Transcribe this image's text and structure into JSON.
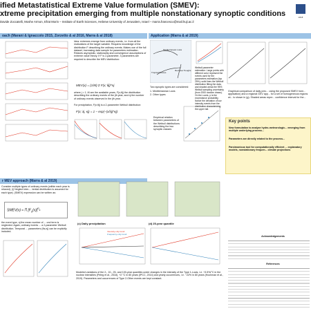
{
  "header": {
    "title_line1": "ified Metastatistical Extreme Value formulation (SMEV):",
    "title_line2": "xtreme precipitation emerging from multiple nonstationary synoptic conditions",
    "authors": "Davide Zoccatelli, Moshe Armon, Efrat Morin – Institute of Earth Sciences, Hebrew University of Jerusalem, Israel – marra.francesco@mail.huji.ac.il"
  },
  "approach": {
    "heading": "oach (Marani & Ignaccolo 2015, Zorzetto & al 2016, Marra & al 2018)",
    "idea": "Idea: extremes emerge from ordinary events, i.e. from all the realizations of the target variable. Requires knowledge of the distribution F describing the ordinary events. Makes use of the full dataset, increasing data sample for parameters estimation. Relaxes asymptotic, stationarity and convergence assumptions of extreme value theory. If F is 2-parameter, 3 parameters are required to describe the MEV distribution:",
    "formula1": "MEV(x) = (1/M) Σ F(x; θj)^nj",
    "where": "where j = 1..M are the available years, F(x;θj) the distribution describing the ordinary events of the jth year, and nj the number of ordinary events observed in the jth year.",
    "for_precip": "For precipitation, F(x;θj) is a 2-parameter Weibull distribution:",
    "formula2": "F(x; λj, κj) = 1 − exp(−(x/λj)^κj)"
  },
  "application": {
    "heading": "Application (Marra & al 2019)",
    "types_intro": "Two synoptic types are considered:",
    "type1": "1. Mediterranean Lows",
    "type2": "2. Other types",
    "map_labels": [
      "Mediterranean Lows",
      "Tropical Plumes",
      "Red Sea Troughs"
    ],
    "weibull_text": "Weibull parameter estimation: Large points with different color represent the events used for the parameters estimation (top 25%); solid lines the Weibull distribution fitting the data, and shaded areas the 95% Weibull sampling uncertainty (from 2000 random draws). On the x-axis, p is the exceedance probability. Notice the deviation of low intensity events from the distribution characterizing the upper tail.",
    "empirical": "Empirical relation between parameters of the Weibull distributions describing the two synoptic classes",
    "comparison": "Graphical comparison of daily prec... using the proposed SMEV form... application) and a regional GEV app... for a set of homogeneous regions wi... is shown in (g). Shaded areas repre... confidence interval for the..."
  },
  "key_points": {
    "heading": "Key points",
    "items": [
      "New formulation to analyze hydro-meteorologic... emerging from multiple underlying process...",
      "Parameters are directly related to the process...",
      "Parsimonious tool for computationally efficient ... explanatory models, nonstationary frequen... climate projections"
    ]
  },
  "smev": {
    "heading": "r MEV approach (Marra & al 2019)",
    "text1": "Consider multiple types of ordinary events (within each year is relaxed). (i) Neglect inter-... tential distribution is assumed for each type). (SMEV) expression can be written as:",
    "text2": "the event type, nj the mean number of ... ond term is neglected. Again, ordinary events ... a 2-parameter Weibull distribution. Temporal ... parameters (θs,nj) can be explicitly included."
  },
  "trends": {
    "panel_c": "(c) Daily precipitation",
    "panel_d": "(d) 25-year quantile",
    "legend": [
      "Intensity-only trend",
      "Frequency-only trend"
    ],
    "caption": "Modeled variations of the 2-, 10-, 25- and 100-year quantiles under changes in the intensity of the Type 1-Lows, i.e. +3.5%/°C in the nuclear intensities (Peleg et al., 2018), +2 °C in 80 years (IPCC, 2014) and yearly occurrences, i.e. −22% in 80 years (Hochman et al., 2019). Parameters and occurrences of Type 2-Other events are kept constant."
  },
  "side": {
    "acknowledgements": "Acknowledgements",
    "references": "References"
  }
}
